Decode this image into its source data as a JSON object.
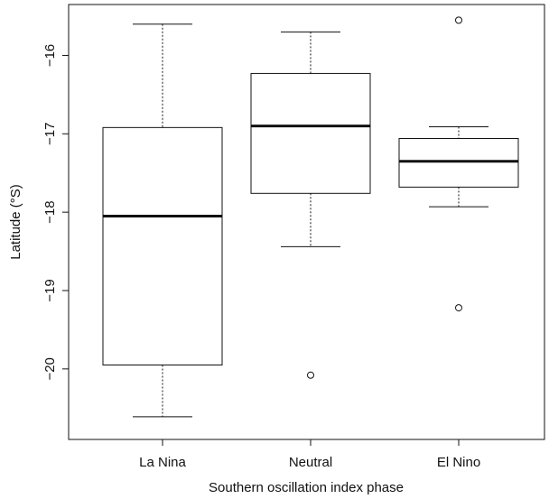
{
  "chart_data": {
    "type": "boxplot",
    "xlabel": "Southern oscillation index phase",
    "ylabel": "Latitude (°S)",
    "ylim": [
      -20.9,
      -15.35
    ],
    "yticks": [
      -16,
      -17,
      -18,
      -19,
      -20
    ],
    "ytick_labels": [
      "−16",
      "−17",
      "−18",
      "−19",
      "−20"
    ],
    "categories": [
      "La Nina",
      "Neutral",
      "El Nino"
    ],
    "boxes": [
      {
        "name": "La Nina",
        "whisker_low": -20.61,
        "q1": -19.95,
        "median": -18.05,
        "q3": -16.92,
        "whisker_high": -15.6,
        "outliers": []
      },
      {
        "name": "Neutral",
        "whisker_low": -18.44,
        "q1": -17.76,
        "median": -16.9,
        "q3": -16.23,
        "whisker_high": -15.7,
        "outliers": [
          -20.08
        ]
      },
      {
        "name": "El Nino",
        "whisker_low": -17.93,
        "q1": -17.68,
        "median": -17.35,
        "q3": -17.06,
        "whisker_high": -16.91,
        "outliers": [
          -15.55,
          -19.22
        ]
      }
    ],
    "grid": false,
    "legend": "none"
  }
}
